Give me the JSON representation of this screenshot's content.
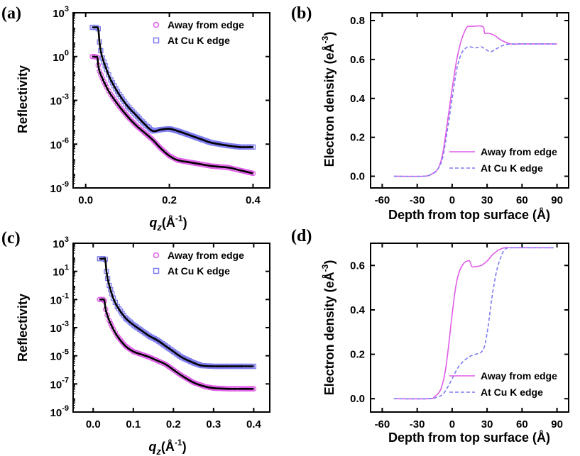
{
  "figure": {
    "colors": {
      "pink": "#e05ce8",
      "blue": "#7d7bf0",
      "fit": "#000000",
      "axis": "#000000"
    }
  },
  "chart_data": [
    {
      "panel": "(a)",
      "type": "scatter",
      "y_scale": "log",
      "xlabel_main": "q",
      "xlabel_sub": "z",
      "xlabel_rest": "(Å",
      "xlabel_sup": "-1",
      "xlabel_close": ")",
      "ylabel": "Reflectivity",
      "xlim": [
        -0.03,
        0.44
      ],
      "ylim_log10": [
        -9,
        3
      ],
      "xticks": [
        0.0,
        0.2,
        0.4
      ],
      "xtick_labels": [
        "0.0",
        "0.2",
        "0.4"
      ],
      "yticks_exp": [
        -9,
        -6,
        -3,
        0,
        3
      ],
      "ytick_base": "10",
      "ytick_exps": [
        "-9",
        "-6",
        "-3",
        "0",
        "3"
      ],
      "legend": {
        "position": "top-right",
        "markers": [
          "circle",
          "square"
        ]
      },
      "series": [
        {
          "name": "Away from edge",
          "color": "#e05ce8",
          "x": [
            0.016,
            0.02,
            0.024,
            0.028,
            0.03,
            0.033,
            0.04,
            0.05,
            0.06,
            0.08,
            0.1,
            0.12,
            0.14,
            0.16,
            0.18,
            0.2,
            0.22,
            0.25,
            0.28,
            0.3,
            0.34,
            0.37,
            0.4
          ],
          "log10_y": [
            0.0,
            0.0,
            -0.02,
            -0.06,
            -0.6,
            -1.0,
            -1.5,
            -2.1,
            -2.6,
            -3.4,
            -4.1,
            -4.7,
            -5.2,
            -5.7,
            -6.3,
            -6.8,
            -7.1,
            -7.25,
            -7.4,
            -7.5,
            -7.6,
            -7.8,
            -8.0
          ]
        },
        {
          "name": "At Cu K edge",
          "color": "#7d7bf0",
          "x": [
            0.016,
            0.02,
            0.025,
            0.03,
            0.033,
            0.036,
            0.04,
            0.05,
            0.06,
            0.08,
            0.1,
            0.12,
            0.14,
            0.16,
            0.18,
            0.2,
            0.22,
            0.24,
            0.26,
            0.28,
            0.3,
            0.34,
            0.37,
            0.4
          ],
          "log10_y": [
            2.0,
            2.0,
            2.0,
            1.9,
            1.0,
            0.4,
            -0.1,
            -0.9,
            -1.6,
            -2.6,
            -3.4,
            -4.0,
            -4.6,
            -5.1,
            -5.0,
            -4.95,
            -5.1,
            -5.3,
            -5.5,
            -5.7,
            -5.9,
            -6.1,
            -6.2,
            -6.2
          ]
        }
      ]
    },
    {
      "panel": "(b)",
      "type": "line",
      "xlabel": "Depth from top surface (Å)",
      "ylabel_main": "Electron density  (eÅ",
      "ylabel_sup": "-3",
      "ylabel_close": ")",
      "xlim": [
        -70,
        100
      ],
      "ylim": [
        -0.06,
        0.84
      ],
      "xticks": [
        -60,
        -30,
        0,
        30,
        60,
        90
      ],
      "xtick_labels": [
        "-60",
        "-30",
        "0",
        "30",
        "60",
        "90"
      ],
      "yticks": [
        0.0,
        0.2,
        0.4,
        0.6,
        0.8
      ],
      "ytick_labels": [
        "0.0",
        "0.2",
        "0.4",
        "0.6",
        "0.8"
      ],
      "legend": {
        "position": "bottom-right"
      },
      "series": [
        {
          "name": "Away from edge",
          "color": "#e05ce8",
          "style": "solid",
          "x": [
            -50,
            -25,
            -18,
            -12,
            -8,
            -4,
            0,
            4,
            8,
            12,
            14,
            16,
            26,
            28,
            31,
            36,
            42,
            50,
            60,
            75,
            90
          ],
          "y": [
            0.0,
            0.0,
            0.01,
            0.04,
            0.12,
            0.28,
            0.45,
            0.6,
            0.7,
            0.76,
            0.77,
            0.77,
            0.77,
            0.735,
            0.735,
            0.725,
            0.7,
            0.68,
            0.68,
            0.68,
            0.68
          ]
        },
        {
          "name": "At Cu K edge",
          "color": "#7d7bf0",
          "style": "dashed",
          "x": [
            -50,
            -25,
            -18,
            -12,
            -8,
            -4,
            0,
            4,
            8,
            12,
            15,
            20,
            25,
            28,
            33,
            38,
            45,
            55,
            70,
            90
          ],
          "y": [
            0.0,
            0.0,
            0.01,
            0.04,
            0.1,
            0.24,
            0.4,
            0.55,
            0.63,
            0.66,
            0.665,
            0.66,
            0.665,
            0.655,
            0.64,
            0.655,
            0.675,
            0.68,
            0.68,
            0.68
          ]
        }
      ]
    },
    {
      "panel": "(c)",
      "type": "scatter",
      "y_scale": "log",
      "xlabel_main": "q",
      "xlabel_sub": "z",
      "xlabel_rest": "(Å",
      "xlabel_sup": "-1",
      "xlabel_close": ")",
      "ylabel": "Reflectivity",
      "xlim": [
        -0.05,
        0.44
      ],
      "ylim_log10": [
        -9,
        3
      ],
      "xticks": [
        0.0,
        0.1,
        0.2,
        0.3,
        0.4
      ],
      "xtick_labels": [
        "0.0",
        "0.1",
        "0.2",
        "0.3",
        "0.4"
      ],
      "yticks_exp": [
        -9,
        -7,
        -5,
        -3,
        -1,
        1,
        3
      ],
      "ytick_base": "10",
      "ytick_exps": [
        "-9",
        "-7",
        "-5",
        "-3",
        "-1",
        "1",
        "3"
      ],
      "legend": {
        "position": "top-right",
        "markers": [
          "circle",
          "square"
        ]
      },
      "series": [
        {
          "name": "Away from edge",
          "color": "#e05ce8",
          "x": [
            0.016,
            0.02,
            0.025,
            0.028,
            0.031,
            0.035,
            0.04,
            0.05,
            0.06,
            0.08,
            0.1,
            0.12,
            0.14,
            0.16,
            0.18,
            0.2,
            0.22,
            0.25,
            0.28,
            0.3,
            0.34,
            0.37,
            0.4
          ],
          "log10_y": [
            -1.0,
            -1.0,
            -1.0,
            -1.1,
            -1.7,
            -2.1,
            -2.5,
            -3.1,
            -3.6,
            -4.3,
            -4.7,
            -4.9,
            -5.1,
            -5.35,
            -5.6,
            -6.0,
            -6.4,
            -6.9,
            -7.2,
            -7.3,
            -7.35,
            -7.35,
            -7.35
          ]
        },
        {
          "name": "At Cu K edge",
          "color": "#7d7bf0",
          "x": [
            0.016,
            0.02,
            0.025,
            0.03,
            0.033,
            0.036,
            0.04,
            0.05,
            0.06,
            0.08,
            0.1,
            0.12,
            0.14,
            0.16,
            0.18,
            0.2,
            0.22,
            0.25,
            0.27,
            0.3,
            0.34,
            0.37,
            0.4
          ],
          "log10_y": [
            1.9,
            1.9,
            1.9,
            1.85,
            1.0,
            0.5,
            0.0,
            -0.9,
            -1.5,
            -2.3,
            -2.8,
            -3.2,
            -3.6,
            -3.9,
            -4.3,
            -4.7,
            -5.1,
            -5.5,
            -5.7,
            -5.75,
            -5.75,
            -5.75,
            -5.75
          ]
        }
      ]
    },
    {
      "panel": "(d)",
      "type": "line",
      "xlabel": "Depth from top surface (Å)",
      "ylabel_main": "Electron density  (eÅ",
      "ylabel_sup": "-3",
      "ylabel_close": ")",
      "xlim": [
        -70,
        100
      ],
      "ylim": [
        -0.06,
        0.7
      ],
      "xticks": [
        -60,
        -30,
        0,
        30,
        60,
        90
      ],
      "xtick_labels": [
        "-60",
        "-30",
        "0",
        "30",
        "60",
        "90"
      ],
      "yticks": [
        0.0,
        0.2,
        0.4,
        0.6
      ],
      "ytick_labels": [
        "0.0",
        "0.2",
        "0.4",
        "0.6"
      ],
      "legend": {
        "position": "bottom-right"
      },
      "series": [
        {
          "name": "Away from edge",
          "color": "#e05ce8",
          "style": "solid",
          "x": [
            -50,
            -20,
            -15,
            -10,
            -6,
            -3,
            0,
            3,
            6,
            10,
            13,
            15,
            17,
            20,
            25,
            30,
            35,
            40,
            45,
            50,
            65,
            87
          ],
          "y": [
            0.0,
            0.0,
            0.01,
            0.04,
            0.12,
            0.24,
            0.38,
            0.5,
            0.57,
            0.61,
            0.62,
            0.62,
            0.595,
            0.595,
            0.6,
            0.62,
            0.65,
            0.67,
            0.68,
            0.68,
            0.68,
            0.68
          ]
        },
        {
          "name": "At Cu K edge",
          "color": "#7d7bf0",
          "style": "dashed",
          "x": [
            -50,
            -20,
            -14,
            -8,
            -3,
            0,
            5,
            10,
            15,
            20,
            25,
            28,
            31,
            34,
            38,
            42,
            46,
            55,
            70,
            87
          ],
          "y": [
            0.0,
            0.0,
            0.005,
            0.02,
            0.06,
            0.09,
            0.14,
            0.17,
            0.19,
            0.2,
            0.21,
            0.24,
            0.33,
            0.45,
            0.57,
            0.64,
            0.675,
            0.68,
            0.68,
            0.68
          ]
        }
      ]
    }
  ]
}
